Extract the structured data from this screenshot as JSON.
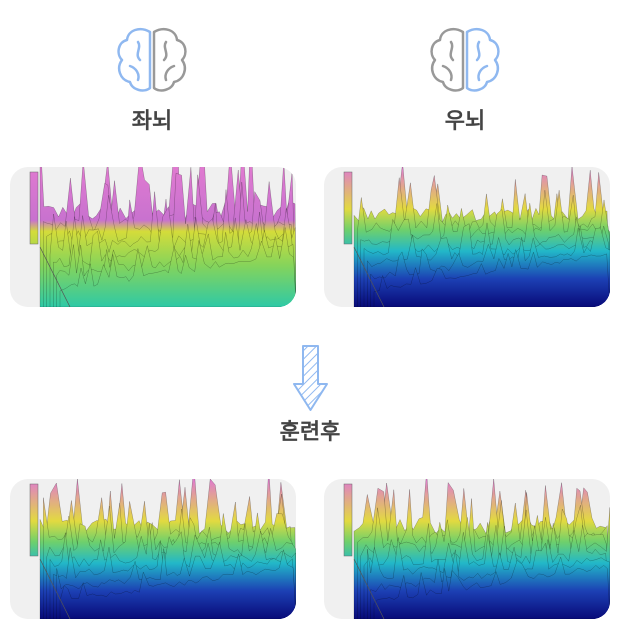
{
  "labels": {
    "left": "좌뇌",
    "right": "우뇌",
    "after": "훈련후"
  }
}
